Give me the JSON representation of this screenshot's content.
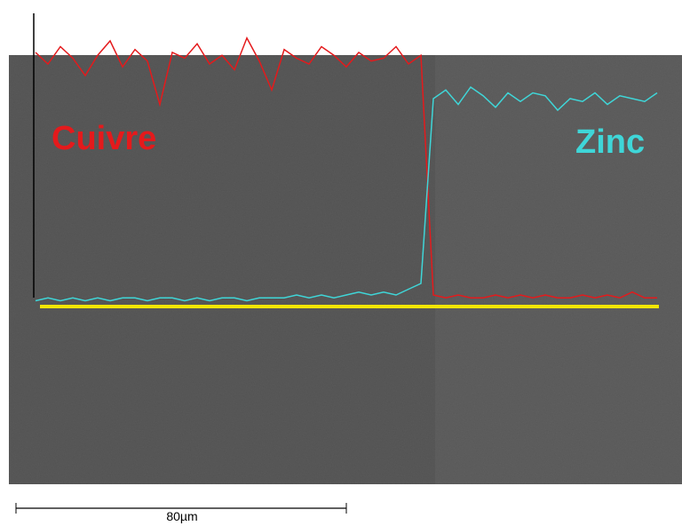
{
  "chart_data": {
    "type": "line",
    "annotations": [
      "Cuivre",
      "Zinc"
    ],
    "scale_bar": "80µm",
    "x": [
      0,
      2,
      4,
      6,
      8,
      10,
      12,
      14,
      16,
      18,
      20,
      22,
      24,
      26,
      28,
      30,
      32,
      34,
      36,
      38,
      40,
      42,
      44,
      46,
      48,
      50,
      52,
      54,
      56,
      58,
      60,
      62,
      64,
      66,
      68,
      70,
      72,
      74,
      76,
      78,
      80,
      82,
      84,
      86,
      88,
      90,
      92,
      94,
      96,
      98,
      100
    ],
    "xlim": [
      0,
      100
    ],
    "ylim": [
      0,
      100
    ],
    "series": [
      {
        "name": "Cuivre",
        "color": "#e41a1c",
        "values": [
          88,
          84,
          90,
          86,
          80,
          87,
          92,
          83,
          89,
          85,
          70,
          88,
          86,
          91,
          84,
          87,
          82,
          93,
          85,
          75,
          89,
          86,
          84,
          90,
          87,
          83,
          88,
          85,
          86,
          90,
          84,
          87,
          4,
          3,
          4,
          3,
          3,
          4,
          3,
          4,
          3,
          4,
          3,
          3,
          4,
          3,
          4,
          3,
          5,
          3,
          3
        ]
      },
      {
        "name": "Zinc",
        "color": "#3fd6d8",
        "values": [
          2,
          3,
          2,
          3,
          2,
          3,
          2,
          3,
          3,
          2,
          3,
          3,
          2,
          3,
          2,
          3,
          3,
          2,
          3,
          3,
          3,
          4,
          3,
          4,
          3,
          4,
          5,
          4,
          5,
          4,
          6,
          8,
          72,
          75,
          70,
          76,
          73,
          69,
          74,
          71,
          74,
          73,
          68,
          72,
          71,
          74,
          70,
          73,
          72,
          71,
          74
        ]
      }
    ]
  }
}
